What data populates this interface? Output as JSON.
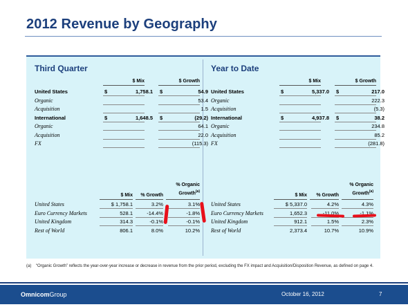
{
  "title": "2012 Revenue by Geography",
  "q3": {
    "title": "Third Quarter",
    "col_mix": "$ Mix",
    "col_growth": "$ Growth",
    "rows": [
      {
        "label": "United States",
        "style": "bold",
        "mix_sym": "$",
        "mix": "1,758.1",
        "growth_sym": "$",
        "growth": "54.9"
      },
      {
        "label": "Organic",
        "style": "italic",
        "mix_sym": "",
        "mix": "",
        "growth_sym": "",
        "growth": "53.4"
      },
      {
        "label": "Acquisition",
        "style": "italic",
        "mix_sym": "",
        "mix": "",
        "growth_sym": "",
        "growth": "1.5"
      },
      {
        "label": "International",
        "style": "bold",
        "mix_sym": "$",
        "mix": "1,648.5",
        "growth_sym": "$",
        "growth": "(29.2)"
      },
      {
        "label": "Organic",
        "style": "italic",
        "mix_sym": "",
        "mix": "",
        "growth_sym": "",
        "growth": "64.1"
      },
      {
        "label": "Acquisition",
        "style": "italic",
        "mix_sym": "",
        "mix": "",
        "growth_sym": "",
        "growth": "22.0"
      },
      {
        "label": "FX",
        "style": "italic",
        "mix_sym": "",
        "mix": "",
        "growth_sym": "",
        "growth": "(115.3)"
      }
    ],
    "h2_mix": "$ Mix",
    "h2_growth": "% Growth",
    "h2_organic_1": "% Organic",
    "h2_organic_2": "Growth",
    "rows2": [
      {
        "label": "United States",
        "mix": "$ 1,758.1",
        "growth": "3.2%",
        "organic": "3.1%"
      },
      {
        "label": "Euro Currency Markets",
        "mix": "528.1",
        "growth": "-14.4%",
        "organic": "-1.8%"
      },
      {
        "label": "United Kingdom",
        "mix": "314.3",
        "growth": "-0.1%",
        "organic": "-0.1%"
      },
      {
        "label": "Rest of World",
        "mix": "806.1",
        "growth": "8.0%",
        "organic": "10.2%"
      }
    ]
  },
  "ytd": {
    "title": "Year to Date",
    "col_mix": "$ Mix",
    "col_growth": "$ Growth",
    "rows": [
      {
        "label": "United States",
        "style": "bold",
        "mix_sym": "$",
        "mix": "5,337.0",
        "growth_sym": "$",
        "growth": "217.0"
      },
      {
        "label": "Organic",
        "style": "italic",
        "mix_sym": "",
        "mix": "",
        "growth_sym": "",
        "growth": "222.3"
      },
      {
        "label": "Acquisition",
        "style": "italic",
        "mix_sym": "",
        "mix": "",
        "growth_sym": "",
        "growth": "(5.3)"
      },
      {
        "label": "International",
        "style": "bold",
        "mix_sym": "$",
        "mix": "4,937.8",
        "growth_sym": "$",
        "growth": "38.2"
      },
      {
        "label": "Organic",
        "style": "italic",
        "mix_sym": "",
        "mix": "",
        "growth_sym": "",
        "growth": "234.8"
      },
      {
        "label": "Acquisition",
        "style": "italic",
        "mix_sym": "",
        "mix": "",
        "growth_sym": "",
        "growth": "85.2"
      },
      {
        "label": "FX",
        "style": "italic",
        "mix_sym": "",
        "mix": "",
        "growth_sym": "",
        "growth": "(281.8)"
      }
    ],
    "h2_mix": "$ Mix",
    "h2_growth": "% Growth",
    "h2_organic_1": "% Organic",
    "h2_organic_2": "Growth",
    "rows2": [
      {
        "label": "United States",
        "mix": "$ 5,337.0",
        "growth": "4.2%",
        "organic": "4.3%"
      },
      {
        "label": "Euro Currency Markets",
        "mix": "1,652.3",
        "growth": "-11.0%",
        "organic": "-1.1%"
      },
      {
        "label": "United Kingdom",
        "mix": "912.1",
        "growth": "1.5%",
        "organic": "2.3%"
      },
      {
        "label": "Rest of World",
        "mix": "2,373.4",
        "growth": "10.7%",
        "organic": "10.9%"
      }
    ]
  },
  "footnote_ref": "(a)",
  "footnote_tag": "(a)",
  "footnote_text": "“Organic Growth” reflects the year-over-year increase or decrease in revenue from the prior period, excluding the FX impact and Acquisition/Disposition Revenue, as defined on page 4.",
  "footer": {
    "logo_bold": "Omnicom",
    "logo_rest": "Group",
    "date": "October 16, 2012",
    "page": "7"
  },
  "colors": {
    "title": "#1c3f7c",
    "panel": "#d8f3f9",
    "band": "#1b4d8e",
    "highlight": "#e8101b"
  }
}
